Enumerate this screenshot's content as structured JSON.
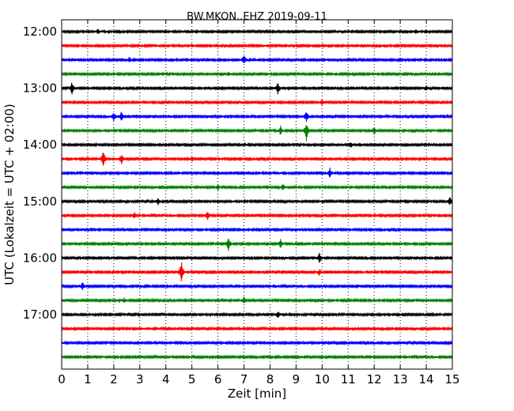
{
  "chart_data": {
    "type": "line",
    "title": "BW.MKON..EHZ 2019-09-11",
    "xlabel": "Zeit  [min]",
    "ylabel": "UTC (Lokalzeit = UTC + 02:00)",
    "xlim": [
      0,
      15
    ],
    "x_ticks": [
      0,
      1,
      2,
      3,
      4,
      5,
      6,
      7,
      8,
      9,
      10,
      11,
      12,
      13,
      14,
      15
    ],
    "y_ticks": [
      "12:00",
      "13:00",
      "14:00",
      "15:00",
      "16:00",
      "17:00"
    ],
    "grid": "vertical dotted at each minute",
    "trace_interval_minutes": 15,
    "trace_colors": [
      "#000000",
      "#ff0000",
      "#0000ff",
      "#008000"
    ],
    "traces": [
      {
        "start": "12:00",
        "events": [
          {
            "x": 1.4,
            "a": 0.25
          },
          {
            "x": 13.6,
            "a": 0.25
          }
        ]
      },
      {
        "start": "12:15",
        "events": [
          {
            "x": 5.0,
            "a": 0.15
          },
          {
            "x": 12.4,
            "a": 0.15
          }
        ]
      },
      {
        "start": "12:30",
        "events": [
          {
            "x": 2.6,
            "a": 0.3
          },
          {
            "x": 7.0,
            "a": 0.55
          }
        ]
      },
      {
        "start": "12:45",
        "events": [
          {
            "x": 6.4,
            "a": 0.2
          }
        ]
      },
      {
        "start": "13:00",
        "events": [
          {
            "x": 0.4,
            "a": 0.7
          },
          {
            "x": 8.3,
            "a": 0.6
          },
          {
            "x": 14.0,
            "a": 0.25
          }
        ]
      },
      {
        "start": "13:15",
        "events": [
          {
            "x": 10.0,
            "a": 0.35
          }
        ]
      },
      {
        "start": "13:30",
        "events": [
          {
            "x": 2.0,
            "a": 0.5
          },
          {
            "x": 2.3,
            "a": 0.6
          },
          {
            "x": 9.4,
            "a": 0.55
          }
        ]
      },
      {
        "start": "13:45",
        "events": [
          {
            "x": 8.4,
            "a": 0.45
          },
          {
            "x": 9.4,
            "a": 1.1
          },
          {
            "x": 12.0,
            "a": 0.4
          }
        ]
      },
      {
        "start": "14:00",
        "events": [
          {
            "x": 11.1,
            "a": 0.3
          }
        ]
      },
      {
        "start": "14:15",
        "events": [
          {
            "x": 1.6,
            "a": 1.0
          },
          {
            "x": 2.3,
            "a": 0.55
          },
          {
            "x": 5.0,
            "a": 0.3
          }
        ]
      },
      {
        "start": "14:30",
        "events": [
          {
            "x": 10.3,
            "a": 0.5
          }
        ]
      },
      {
        "start": "14:45",
        "events": [
          {
            "x": 6.0,
            "a": 0.3
          },
          {
            "x": 8.5,
            "a": 0.3
          }
        ]
      },
      {
        "start": "15:00",
        "events": [
          {
            "x": 3.7,
            "a": 0.35
          },
          {
            "x": 14.9,
            "a": 0.55
          }
        ]
      },
      {
        "start": "15:15",
        "events": [
          {
            "x": 2.8,
            "a": 0.35
          },
          {
            "x": 5.6,
            "a": 0.6
          }
        ]
      },
      {
        "start": "15:30",
        "events": []
      },
      {
        "start": "15:45",
        "events": [
          {
            "x": 6.4,
            "a": 0.75
          },
          {
            "x": 8.4,
            "a": 0.5
          }
        ]
      },
      {
        "start": "16:00",
        "events": [
          {
            "x": 9.9,
            "a": 0.5
          }
        ]
      },
      {
        "start": "16:15",
        "events": [
          {
            "x": 4.6,
            "a": 1.35
          },
          {
            "x": 9.9,
            "a": 0.35
          }
        ]
      },
      {
        "start": "16:30",
        "events": [
          {
            "x": 0.8,
            "a": 0.4
          }
        ]
      },
      {
        "start": "16:45",
        "events": [
          {
            "x": 2.4,
            "a": 0.25
          },
          {
            "x": 7.0,
            "a": 0.45
          }
        ]
      },
      {
        "start": "17:00",
        "events": [
          {
            "x": 8.3,
            "a": 0.35
          }
        ]
      },
      {
        "start": "17:15",
        "events": [
          {
            "x": 3.3,
            "a": 0.15
          }
        ]
      },
      {
        "start": "17:30",
        "events": []
      },
      {
        "start": "17:45",
        "events": []
      }
    ]
  }
}
